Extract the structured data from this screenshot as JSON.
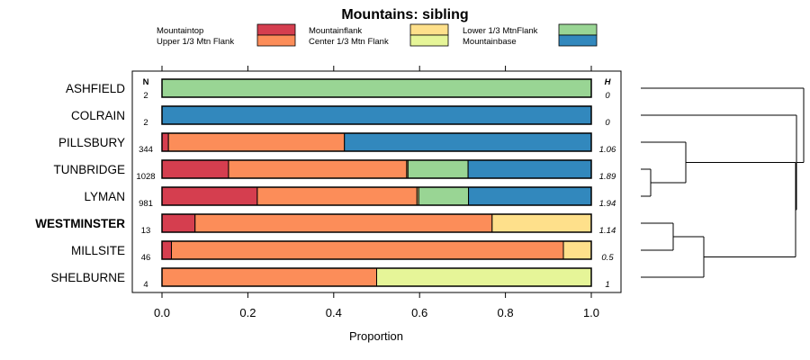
{
  "chart_data": {
    "type": "bar",
    "stacked": true,
    "orientation": "horizontal",
    "title": "Mountains: sibling",
    "xlabel": "Proportion",
    "ylabel": "",
    "xlim": [
      0,
      1
    ],
    "xticks": [
      "0.0",
      "0.2",
      "0.4",
      "0.6",
      "0.8",
      "1.0"
    ],
    "n_header": "N",
    "h_header": "H",
    "legend": [
      {
        "name": "Mountaintop",
        "color": "#d53e4f"
      },
      {
        "name": "Upper 1/3 Mtn Flank",
        "color": "#fc8d59"
      },
      {
        "name": "Mountainflank",
        "color": "#fee08b"
      },
      {
        "name": "Center 1/3 Mtn Flank",
        "color": "#e6f598"
      },
      {
        "name": "Lower 1/3 MtnFlank",
        "color": "#99d594"
      },
      {
        "name": "Mountainbase",
        "color": "#3288bd"
      }
    ],
    "categories": [
      "ASHFIELD",
      "COLRAIN",
      "PILLSBURY",
      "TUNBRIDGE",
      "LYMAN",
      "WESTMINSTER",
      "MILLSITE",
      "SHELBURNE"
    ],
    "highlighted": "WESTMINSTER",
    "n": [
      "2",
      "2",
      "344",
      "1028",
      "981",
      "13",
      "46",
      "4"
    ],
    "h": [
      "0",
      "0",
      "1.06",
      "1.89",
      "1.94",
      "1.14",
      "0.5",
      "1"
    ],
    "series": [
      {
        "name": "Mountaintop",
        "values": [
          0,
          0,
          0.015,
          0.155,
          0.222,
          0.077,
          0.022,
          0
        ]
      },
      {
        "name": "Upper 1/3 Mtn Flank",
        "values": [
          0,
          0,
          0.41,
          0.415,
          0.372,
          0.692,
          0.913,
          0.5
        ]
      },
      {
        "name": "Mountainflank",
        "values": [
          0,
          0,
          0,
          0.003,
          0.004,
          0.231,
          0.065,
          0
        ]
      },
      {
        "name": "Center 1/3 Mtn Flank",
        "values": [
          0,
          0,
          0,
          0,
          0,
          0,
          0,
          0.5
        ]
      },
      {
        "name": "Lower 1/3 MtnFlank",
        "values": [
          1,
          0,
          0,
          0.14,
          0.116,
          0,
          0,
          0
        ]
      },
      {
        "name": "Mountainbase",
        "values": [
          0,
          1,
          0.575,
          0.287,
          0.286,
          0,
          0,
          0
        ]
      }
    ],
    "dendrogram": {
      "type": "hierarchical-clustering",
      "merges": [
        [
          "TUNBRIDGE",
          "LYMAN"
        ],
        [
          "PILLSBURY",
          "TUNBRIDGE+LYMAN"
        ],
        [
          "WESTMINSTER",
          "MILLSITE"
        ],
        [
          "WESTMINSTER+MILLSITE",
          "SHELBURNE"
        ],
        [
          "PILLSBURY+TUNBRIDGE+LYMAN",
          "WESTMINSTER+MILLSITE+SHELBURNE"
        ],
        [
          "COLRAIN",
          "PILLSBURY..SHELBURNE"
        ],
        [
          "ASHFIELD",
          "COLRAIN..SHELBURNE"
        ]
      ],
      "merge_heights": [
        0.05,
        0.55,
        0.25,
        0.65,
        1.75,
        1.9,
        2.3
      ]
    }
  }
}
